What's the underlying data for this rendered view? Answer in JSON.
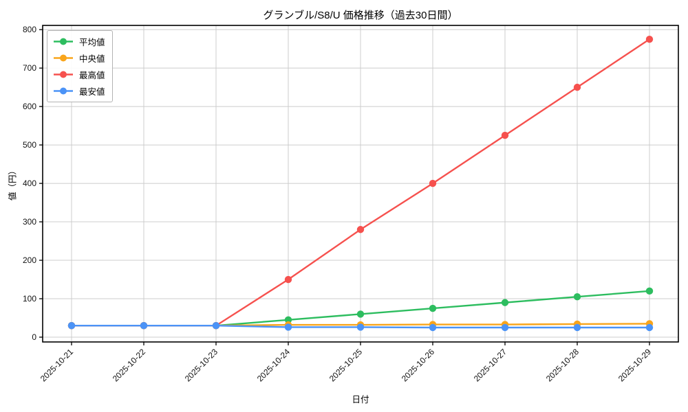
{
  "chart_data": {
    "type": "line",
    "title": "グランブル/S8/U 価格推移（過去30日間）",
    "xlabel": "日付",
    "ylabel": "値（円）",
    "categories": [
      "2025-10-21",
      "2025-10-22",
      "2025-10-23",
      "2025-10-24",
      "2025-10-25",
      "2025-10-26",
      "2025-10-27",
      "2025-10-28",
      "2025-10-29"
    ],
    "series": [
      {
        "name": "平均値",
        "color": "#2dbd5f",
        "values": [
          30,
          30,
          30,
          45,
          60,
          75,
          90,
          105,
          120
        ]
      },
      {
        "name": "中央値",
        "color": "#f9a51b",
        "values": [
          30,
          30,
          30,
          32,
          32,
          33,
          33,
          34,
          35
        ]
      },
      {
        "name": "最高値",
        "color": "#f6514e",
        "values": [
          30,
          30,
          30,
          150,
          280,
          400,
          525,
          650,
          775
        ]
      },
      {
        "name": "最安値",
        "color": "#4b93f7",
        "values": [
          30,
          30,
          30,
          26,
          26,
          25,
          25,
          25,
          25
        ]
      }
    ],
    "yticks": [
      0,
      100,
      200,
      300,
      400,
      500,
      600,
      700,
      800
    ],
    "ylim": [
      -12.5,
      811
    ],
    "grid": true,
    "grid_color": "#cccccc",
    "legend_position": "upper-left"
  }
}
